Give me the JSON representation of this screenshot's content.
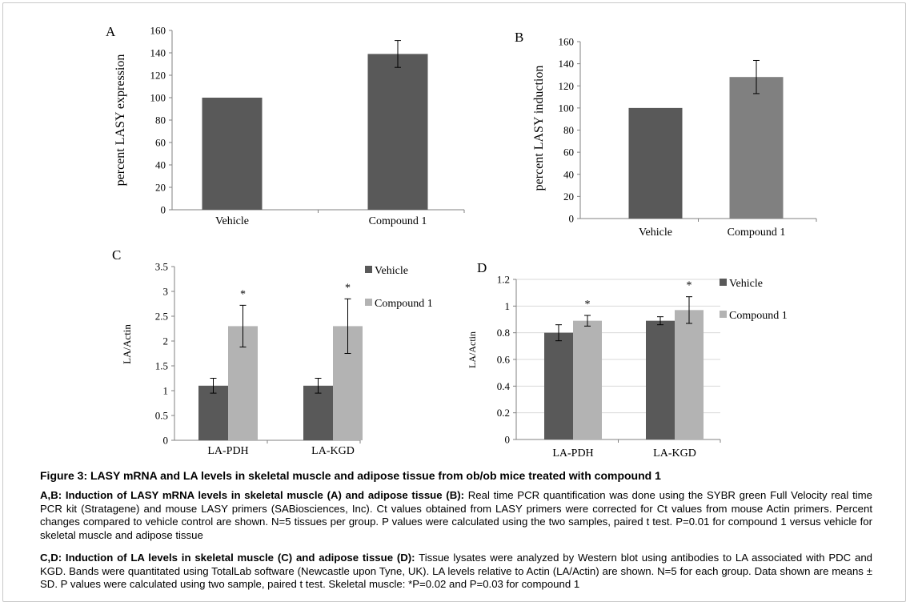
{
  "chart_data": [
    {
      "panel": "A",
      "type": "bar",
      "categories": [
        "Vehicle",
        "Compound 1"
      ],
      "values": [
        100,
        139
      ],
      "errors": [
        0,
        12
      ],
      "ylabel": "percent LASY expression",
      "ylim": [
        0,
        160
      ],
      "yticks": [
        0,
        20,
        40,
        60,
        80,
        100,
        120,
        140,
        160
      ],
      "colors": [
        "#595959",
        "#595959"
      ],
      "grid": false
    },
    {
      "panel": "B",
      "type": "bar",
      "categories": [
        "Vehicle",
        "Compound 1"
      ],
      "values": [
        100,
        128
      ],
      "errors": [
        0,
        15
      ],
      "ylabel": "percent LASY induction",
      "ylim": [
        0,
        160
      ],
      "yticks": [
        0,
        20,
        40,
        60,
        80,
        100,
        120,
        140,
        160
      ],
      "colors": [
        "#595959",
        "#808080"
      ],
      "grid": false
    },
    {
      "panel": "C",
      "type": "bar",
      "categories": [
        "LA-PDH",
        "LA-KGD"
      ],
      "series": [
        {
          "name": "Vehicle",
          "values": [
            1.1,
            1.1
          ],
          "errors": [
            0.15,
            0.15
          ],
          "color": "#595959"
        },
        {
          "name": "Compound 1",
          "values": [
            2.3,
            2.3
          ],
          "errors": [
            0.42,
            0.55
          ],
          "color": "#b3b3b3"
        }
      ],
      "annotations": [
        "*",
        "*"
      ],
      "ylabel": "LA/Actin",
      "ylim": [
        0,
        3.5
      ],
      "yticks": [
        "0",
        "0.5",
        "1",
        "1.5",
        "2",
        "2.5",
        "3",
        "3.5"
      ],
      "legend": "right",
      "grid": false
    },
    {
      "panel": "D",
      "type": "bar",
      "categories": [
        "LA-PDH",
        "LA-KGD"
      ],
      "series": [
        {
          "name": "Vehicle",
          "values": [
            0.8,
            0.89
          ],
          "errors": [
            0.06,
            0.03
          ],
          "color": "#595959"
        },
        {
          "name": "Compound 1",
          "values": [
            0.89,
            0.97
          ],
          "errors": [
            0.04,
            0.1
          ],
          "color": "#b3b3b3"
        }
      ],
      "annotations": [
        "*",
        "*"
      ],
      "ylabel": "LA/Actin",
      "ylim": [
        0,
        1.2
      ],
      "yticks": [
        "0",
        "0.2",
        "0.4",
        "0.6",
        "0.8",
        "1",
        "1.2"
      ],
      "legend": "right",
      "grid": true
    }
  ],
  "caption": {
    "title": "Figure 3: LASY mRNA and LA levels in skeletal muscle and adipose tissue from ob/ob mice treated with compound 1",
    "ab_bold": "A,B: Induction of LASY mRNA levels in skeletal muscle (A) and adipose tissue (B):",
    "ab_text": " Real time PCR quantification was done using the SYBR green Full Velocity real time PCR kit (Stratagene) and mouse LASY primers (SABiosciences, Inc). Ct values obtained from LASY primers were corrected for Ct values from mouse Actin primers. Percent changes compared to vehicle control are shown. N=5 tissues per group. P values were calculated using the two samples, paired t test. P=0.01 for compound 1 versus vehicle for skeletal muscle and adipose tissue",
    "cd_bold": "C,D: Induction of LA levels in skeletal muscle (C) and adipose tissue (D):",
    "cd_text": " Tissue lysates were analyzed by Western blot using antibodies to LA associated with PDC and KGD. Bands were quantitated using TotalLab software (Newcastle upon Tyne, UK). LA levels relative to Actin (LA/Actin) are shown. N=5 for each group. Data shown are means ± SD. P values were calculated using two sample, paired t test. Skeletal muscle: *P=0.02 and P=0.03 for compound 1"
  }
}
